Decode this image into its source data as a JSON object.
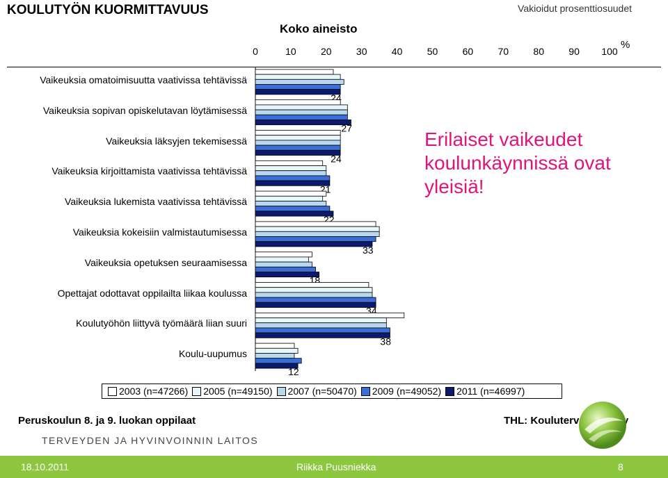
{
  "header": {
    "title": "KOULUTYÖN KUORMITTAVUUS",
    "subtitle": "Vakioidut prosenttiosuudet"
  },
  "chart_data": {
    "type": "bar",
    "orientation": "horizontal",
    "title": "Koko aineisto",
    "x_unit": "%",
    "xlim": [
      0,
      100
    ],
    "x_ticks": [
      0,
      10,
      20,
      30,
      40,
      50,
      60,
      70,
      80,
      90,
      100
    ],
    "legend_position": "bottom",
    "categories": [
      "Vaikeuksia omatoimisuutta vaativissa tehtävissä",
      "Vaikeuksia sopivan opiskelutavan löytämisessä",
      "Vaikeuksia läksyjen tekemisessä",
      "Vaikeuksia kirjoittamista vaativissa tehtävissä",
      "Vaikeuksia lukemista vaativissa tehtävissä",
      "Vaikeuksia kokeisiin valmistautumisessa",
      "Vaikeuksia opetuksen seuraamisessa",
      "Opettajat odottavat oppilailta liikaa koulussa",
      "Koulutyöhön liittyvä työmäärä liian suuri",
      "Koulu-uupumus"
    ],
    "series": [
      {
        "name": "2003 (n=47266)",
        "color": "#ffffff",
        "values": [
          22,
          24,
          24,
          19,
          20,
          34,
          16,
          32,
          42,
          11
        ]
      },
      {
        "name": "2005 (n=49150)",
        "color": "#e6f6fb",
        "values": [
          24,
          26,
          24,
          20,
          19,
          35,
          15,
          33,
          37,
          12
        ]
      },
      {
        "name": "2007 (n=50470)",
        "color": "#b8d8f0",
        "values": [
          25,
          26,
          24,
          20,
          20,
          35,
          16,
          33,
          37,
          11
        ]
      },
      {
        "name": "2009 (n=49052)",
        "color": "#3a6fd8",
        "values": [
          24,
          26,
          24,
          21,
          21,
          34,
          17,
          34,
          38,
          13
        ]
      },
      {
        "name": "2011 (n=46997)",
        "color": "#0a1a6e",
        "values": [
          24,
          27,
          24,
          21,
          22,
          33,
          18,
          34,
          38,
          12
        ]
      }
    ],
    "data_labels": [
      24,
      27,
      24,
      21,
      22,
      33,
      18,
      34,
      38,
      12
    ]
  },
  "callout": "Erilaiset vaikeudet koulunkäynnissä ovat yleisiä!",
  "footer": {
    "left": "Peruskoulun 8. ja 9. luokan oppilaat",
    "right": "THL: Kouluterveyskysely",
    "org": "TERVEYDEN JA HYVINVOINNIN LAITOS",
    "date": "18.10.2011",
    "author": "Riikka Puusniekka",
    "page": "8"
  },
  "colors": {
    "accent": "#e0157a",
    "bar_bottom": "#8dc63f"
  }
}
